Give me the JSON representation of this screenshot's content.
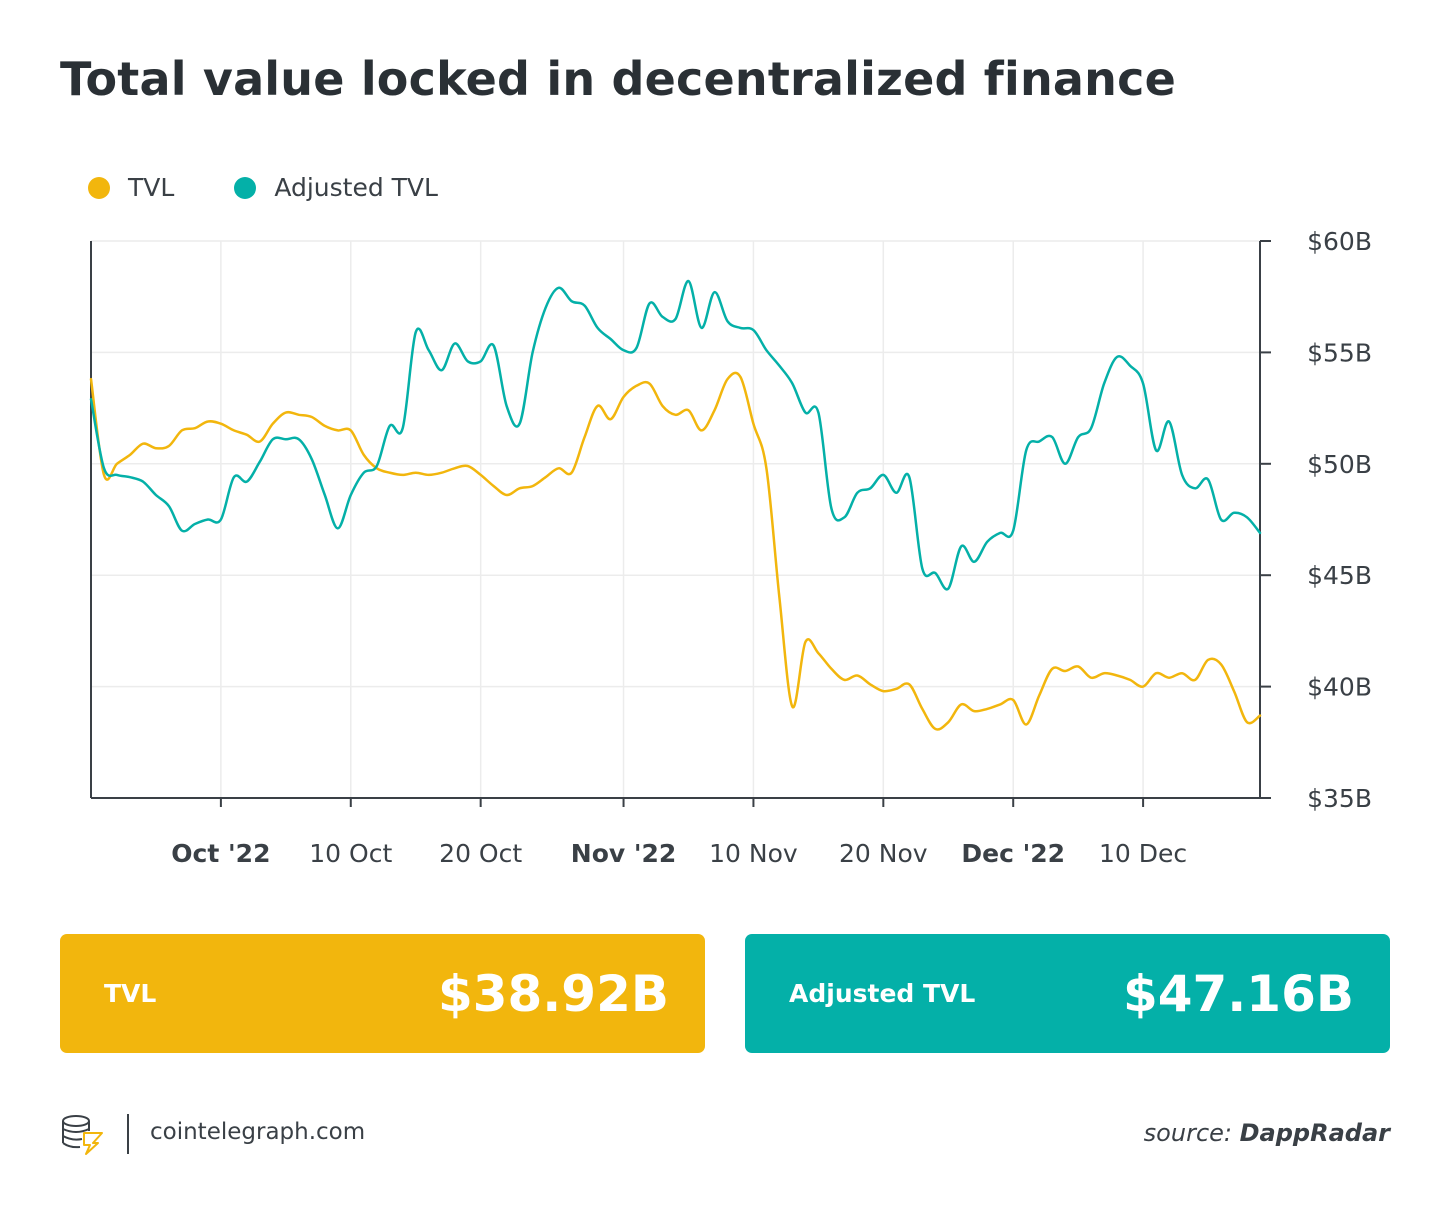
{
  "title": "Total value locked in decentralized finance",
  "legend": [
    {
      "label": "TVL",
      "color": "#f2b60d"
    },
    {
      "label": "Adjusted TVL",
      "color": "#04b0a8"
    }
  ],
  "chart_data": {
    "type": "line",
    "title": "Total value locked in decentralized finance",
    "x_range": [
      "2022-09-21",
      "2022-12-20"
    ],
    "y_axis": {
      "position": "right",
      "min": 35,
      "max": 60,
      "ticks": [
        35,
        40,
        45,
        50,
        55,
        60
      ],
      "tick_labels": [
        "$35B",
        "$40B",
        "$45B",
        "$50B",
        "$55B",
        "$60B"
      ],
      "unit": "USD billions"
    },
    "x_ticks": [
      {
        "date": "2022-10-01",
        "label": "Oct '22",
        "bold": true
      },
      {
        "date": "2022-10-11",
        "label": "10 Oct",
        "bold": false
      },
      {
        "date": "2022-10-21",
        "label": "20 Oct",
        "bold": false
      },
      {
        "date": "2022-11-01",
        "label": "Nov '22",
        "bold": true
      },
      {
        "date": "2022-11-11",
        "label": "10 Nov",
        "bold": false
      },
      {
        "date": "2022-11-21",
        "label": "20 Nov",
        "bold": false
      },
      {
        "date": "2022-12-01",
        "label": "Dec '22",
        "bold": true
      },
      {
        "date": "2022-12-11",
        "label": "10 Dec",
        "bold": false
      }
    ],
    "grid": true,
    "legend_position": "top-left",
    "series": [
      {
        "name": "TVL",
        "color": "#f2b60d",
        "points": [
          [
            "2022-09-21",
            53.8
          ],
          [
            "2022-09-22",
            49.5
          ],
          [
            "2022-09-23",
            50.0
          ],
          [
            "2022-09-24",
            50.4
          ],
          [
            "2022-09-25",
            50.9
          ],
          [
            "2022-09-26",
            50.7
          ],
          [
            "2022-09-27",
            50.8
          ],
          [
            "2022-09-28",
            51.5
          ],
          [
            "2022-09-29",
            51.6
          ],
          [
            "2022-09-30",
            51.9
          ],
          [
            "2022-10-01",
            51.8
          ],
          [
            "2022-10-02",
            51.5
          ],
          [
            "2022-10-03",
            51.3
          ],
          [
            "2022-10-04",
            51.0
          ],
          [
            "2022-10-05",
            51.8
          ],
          [
            "2022-10-06",
            52.3
          ],
          [
            "2022-10-07",
            52.2
          ],
          [
            "2022-10-08",
            52.1
          ],
          [
            "2022-10-09",
            51.7
          ],
          [
            "2022-10-10",
            51.5
          ],
          [
            "2022-10-11",
            51.5
          ],
          [
            "2022-10-12",
            50.4
          ],
          [
            "2022-10-13",
            49.8
          ],
          [
            "2022-10-14",
            49.6
          ],
          [
            "2022-10-15",
            49.5
          ],
          [
            "2022-10-16",
            49.6
          ],
          [
            "2022-10-17",
            49.5
          ],
          [
            "2022-10-18",
            49.6
          ],
          [
            "2022-10-19",
            49.8
          ],
          [
            "2022-10-20",
            49.9
          ],
          [
            "2022-10-21",
            49.5
          ],
          [
            "2022-10-22",
            49.0
          ],
          [
            "2022-10-23",
            48.6
          ],
          [
            "2022-10-24",
            48.9
          ],
          [
            "2022-10-25",
            49.0
          ],
          [
            "2022-10-26",
            49.4
          ],
          [
            "2022-10-27",
            49.8
          ],
          [
            "2022-10-28",
            49.6
          ],
          [
            "2022-10-29",
            51.2
          ],
          [
            "2022-10-30",
            52.6
          ],
          [
            "2022-10-31",
            52.0
          ],
          [
            "2022-11-01",
            53.0
          ],
          [
            "2022-11-02",
            53.5
          ],
          [
            "2022-11-03",
            53.6
          ],
          [
            "2022-11-04",
            52.6
          ],
          [
            "2022-11-05",
            52.2
          ],
          [
            "2022-11-06",
            52.4
          ],
          [
            "2022-11-07",
            51.5
          ],
          [
            "2022-11-08",
            52.4
          ],
          [
            "2022-11-09",
            53.8
          ],
          [
            "2022-11-10",
            53.9
          ],
          [
            "2022-11-11",
            51.8
          ],
          [
            "2022-11-12",
            49.8
          ],
          [
            "2022-11-13",
            44.0
          ],
          [
            "2022-11-14",
            39.1
          ],
          [
            "2022-11-15",
            42.0
          ],
          [
            "2022-11-16",
            41.5
          ],
          [
            "2022-11-17",
            40.8
          ],
          [
            "2022-11-18",
            40.3
          ],
          [
            "2022-11-19",
            40.5
          ],
          [
            "2022-11-20",
            40.1
          ],
          [
            "2022-11-21",
            39.8
          ],
          [
            "2022-11-22",
            39.9
          ],
          [
            "2022-11-23",
            40.1
          ],
          [
            "2022-11-24",
            39.0
          ],
          [
            "2022-11-25",
            38.1
          ],
          [
            "2022-11-26",
            38.4
          ],
          [
            "2022-11-27",
            39.2
          ],
          [
            "2022-11-28",
            38.9
          ],
          [
            "2022-11-29",
            39.0
          ],
          [
            "2022-11-30",
            39.2
          ],
          [
            "2022-12-01",
            39.4
          ],
          [
            "2022-12-02",
            38.3
          ],
          [
            "2022-12-03",
            39.6
          ],
          [
            "2022-12-04",
            40.8
          ],
          [
            "2022-12-05",
            40.7
          ],
          [
            "2022-12-06",
            40.9
          ],
          [
            "2022-12-07",
            40.4
          ],
          [
            "2022-12-08",
            40.6
          ],
          [
            "2022-12-09",
            40.5
          ],
          [
            "2022-12-10",
            40.3
          ],
          [
            "2022-12-11",
            40.0
          ],
          [
            "2022-12-12",
            40.6
          ],
          [
            "2022-12-13",
            40.4
          ],
          [
            "2022-12-14",
            40.6
          ],
          [
            "2022-12-15",
            40.3
          ],
          [
            "2022-12-16",
            41.2
          ],
          [
            "2022-12-17",
            41.0
          ],
          [
            "2022-12-18",
            39.8
          ],
          [
            "2022-12-19",
            38.4
          ],
          [
            "2022-12-20",
            38.7
          ]
        ]
      },
      {
        "name": "Adjusted TVL",
        "color": "#04b0a8",
        "points": [
          [
            "2022-09-21",
            52.9
          ],
          [
            "2022-09-22",
            49.8
          ],
          [
            "2022-09-23",
            49.5
          ],
          [
            "2022-09-24",
            49.4
          ],
          [
            "2022-09-25",
            49.2
          ],
          [
            "2022-09-26",
            48.6
          ],
          [
            "2022-09-27",
            48.1
          ],
          [
            "2022-09-28",
            47.0
          ],
          [
            "2022-09-29",
            47.3
          ],
          [
            "2022-09-30",
            47.5
          ],
          [
            "2022-10-01",
            47.5
          ],
          [
            "2022-10-02",
            49.4
          ],
          [
            "2022-10-03",
            49.2
          ],
          [
            "2022-10-04",
            50.1
          ],
          [
            "2022-10-05",
            51.1
          ],
          [
            "2022-10-06",
            51.1
          ],
          [
            "2022-10-07",
            51.1
          ],
          [
            "2022-10-08",
            50.2
          ],
          [
            "2022-10-09",
            48.6
          ],
          [
            "2022-10-10",
            47.1
          ],
          [
            "2022-10-11",
            48.6
          ],
          [
            "2022-10-12",
            49.6
          ],
          [
            "2022-10-13",
            49.9
          ],
          [
            "2022-10-14",
            51.7
          ],
          [
            "2022-10-15",
            51.6
          ],
          [
            "2022-10-16",
            55.9
          ],
          [
            "2022-10-17",
            55.1
          ],
          [
            "2022-10-18",
            54.2
          ],
          [
            "2022-10-19",
            55.4
          ],
          [
            "2022-10-20",
            54.6
          ],
          [
            "2022-10-21",
            54.6
          ],
          [
            "2022-10-22",
            55.3
          ],
          [
            "2022-10-23",
            52.6
          ],
          [
            "2022-10-24",
            51.8
          ],
          [
            "2022-10-25",
            55.0
          ],
          [
            "2022-10-26",
            57.0
          ],
          [
            "2022-10-27",
            57.9
          ],
          [
            "2022-10-28",
            57.3
          ],
          [
            "2022-10-29",
            57.1
          ],
          [
            "2022-10-30",
            56.1
          ],
          [
            "2022-10-31",
            55.6
          ],
          [
            "2022-11-01",
            55.1
          ],
          [
            "2022-11-02",
            55.2
          ],
          [
            "2022-11-03",
            57.2
          ],
          [
            "2022-11-04",
            56.6
          ],
          [
            "2022-11-05",
            56.5
          ],
          [
            "2022-11-06",
            58.2
          ],
          [
            "2022-11-07",
            56.1
          ],
          [
            "2022-11-08",
            57.7
          ],
          [
            "2022-11-09",
            56.4
          ],
          [
            "2022-11-10",
            56.1
          ],
          [
            "2022-11-11",
            56.0
          ],
          [
            "2022-11-12",
            55.1
          ],
          [
            "2022-11-13",
            54.4
          ],
          [
            "2022-11-14",
            53.6
          ],
          [
            "2022-11-15",
            52.3
          ],
          [
            "2022-11-16",
            52.3
          ],
          [
            "2022-11-17",
            48.0
          ],
          [
            "2022-11-18",
            47.6
          ],
          [
            "2022-11-19",
            48.7
          ],
          [
            "2022-11-20",
            48.9
          ],
          [
            "2022-11-21",
            49.5
          ],
          [
            "2022-11-22",
            48.7
          ],
          [
            "2022-11-23",
            49.4
          ],
          [
            "2022-11-24",
            45.3
          ],
          [
            "2022-11-25",
            45.1
          ],
          [
            "2022-11-26",
            44.4
          ],
          [
            "2022-11-27",
            46.3
          ],
          [
            "2022-11-28",
            45.6
          ],
          [
            "2022-11-29",
            46.5
          ],
          [
            "2022-11-30",
            46.9
          ],
          [
            "2022-12-01",
            47.0
          ],
          [
            "2022-12-02",
            50.6
          ],
          [
            "2022-12-03",
            51.0
          ],
          [
            "2022-12-04",
            51.2
          ],
          [
            "2022-12-05",
            50.0
          ],
          [
            "2022-12-06",
            51.2
          ],
          [
            "2022-12-07",
            51.6
          ],
          [
            "2022-12-08",
            53.6
          ],
          [
            "2022-12-09",
            54.8
          ],
          [
            "2022-12-10",
            54.4
          ],
          [
            "2022-12-11",
            53.6
          ],
          [
            "2022-12-12",
            50.6
          ],
          [
            "2022-12-13",
            51.9
          ],
          [
            "2022-12-14",
            49.5
          ],
          [
            "2022-12-15",
            48.9
          ],
          [
            "2022-12-16",
            49.3
          ],
          [
            "2022-12-17",
            47.5
          ],
          [
            "2022-12-18",
            47.8
          ],
          [
            "2022-12-19",
            47.6
          ],
          [
            "2022-12-20",
            46.9
          ]
        ]
      }
    ]
  },
  "stats": {
    "tvl": {
      "label": "TVL",
      "value": "$38.92B",
      "color": "#f2b60d"
    },
    "adjusted": {
      "label": "Adjusted TVL",
      "value": "$47.16B",
      "color": "#04b0a8"
    }
  },
  "footer": {
    "site": "cointelegraph.com",
    "source_prefix": "source: ",
    "source_name": "DappRadar"
  }
}
